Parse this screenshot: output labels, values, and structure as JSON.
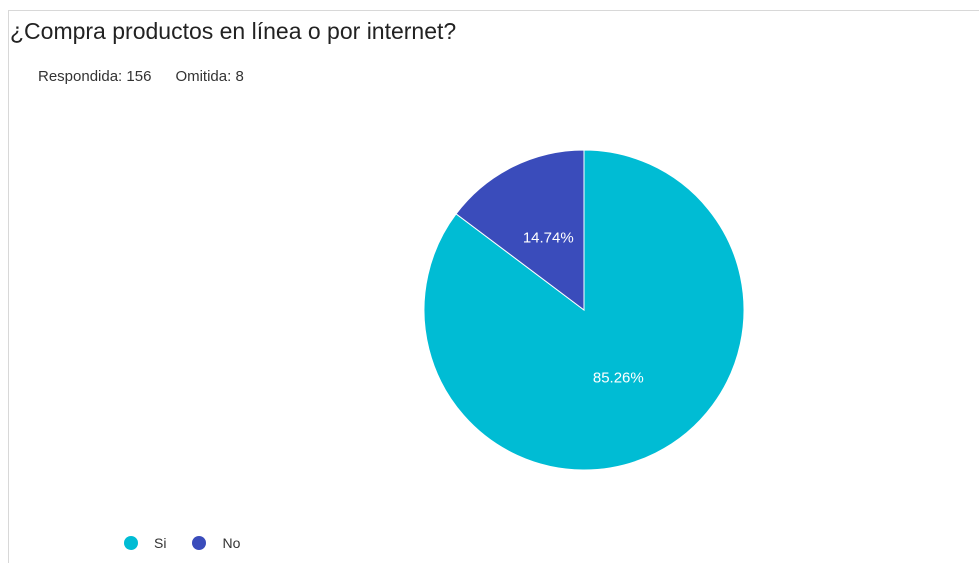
{
  "question": {
    "title": "¿Compra productos en línea o por internet?"
  },
  "stats": {
    "answered_label": "Respondida: 156",
    "skipped_label": "Omitida: 8"
  },
  "colors": {
    "si": "#00bcd4",
    "no": "#3a4cbb"
  },
  "chart_data": {
    "type": "pie",
    "title": "¿Compra productos en línea o por internet?",
    "categories": [
      "Si",
      "No"
    ],
    "values": [
      85.26,
      14.74
    ],
    "data_labels": [
      "85.26%",
      "14.74%"
    ],
    "start_angle_deg": 0,
    "direction": "counterclockwise",
    "legend": "bottom-left"
  }
}
